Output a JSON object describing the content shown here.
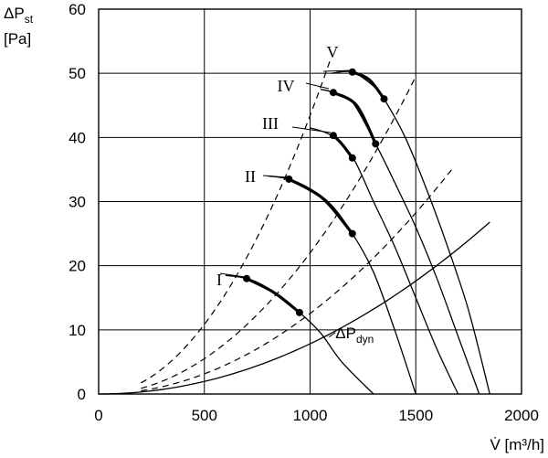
{
  "chart_data": {
    "type": "line",
    "xlabel": "V̇ [m³/h]",
    "ylabel_lines": [
      "ΔPst",
      "[Pa]"
    ],
    "ylabel_main": "ΔP",
    "ylabel_sub": "st",
    "ylabel_unit": "[Pa]",
    "xlim": [
      0,
      2000
    ],
    "ylim": [
      0,
      60
    ],
    "xticks": [
      "0",
      "500",
      "1000",
      "1500",
      "2000"
    ],
    "yticks": [
      "0",
      "10",
      "20",
      "30",
      "40",
      "50",
      "60"
    ],
    "grid": true,
    "fan_curves": [
      {
        "name": "I",
        "x": [
          600,
          700,
          800,
          950,
          1050,
          1150,
          1300
        ],
        "y": [
          18.5,
          18.0,
          16.5,
          12.7,
          9.5,
          5.0,
          0
        ]
      },
      {
        "name": "II",
        "x": [
          800,
          900,
          1000,
          1100,
          1200,
          1300,
          1400,
          1500
        ],
        "y": [
          34.0,
          33.5,
          32.0,
          29.5,
          25.0,
          19.0,
          10.0,
          0
        ]
      },
      {
        "name": "III",
        "x": [
          1000,
          1100,
          1200,
          1300,
          1400,
          1500,
          1600,
          1700
        ],
        "y": [
          41.5,
          40.3,
          37.0,
          30.0,
          23.0,
          15.0,
          7.0,
          0
        ]
      },
      {
        "name": "IV",
        "x": [
          1050,
          1110,
          1200,
          1310,
          1400,
          1500,
          1600,
          1700,
          1800
        ],
        "y": [
          47.5,
          47.0,
          45.5,
          39.0,
          33.0,
          26.0,
          18.0,
          9.0,
          0
        ]
      },
      {
        "name": "V",
        "x": [
          1100,
          1200,
          1300,
          1350,
          1450,
          1550,
          1650,
          1750,
          1850
        ],
        "y": [
          50.0,
          50.2,
          48.0,
          46.0,
          40.0,
          32.0,
          23.0,
          13.0,
          0
        ]
      }
    ],
    "operating_segments": [
      {
        "name": "I",
        "x": [
          700,
          830,
          950
        ],
        "y": [
          18.0,
          15.8,
          12.7
        ]
      },
      {
        "name": "II",
        "x": [
          900,
          1060,
          1200
        ],
        "y": [
          33.5,
          30.5,
          25.0
        ]
      },
      {
        "name": "III",
        "x": [
          1110,
          1150,
          1200
        ],
        "y": [
          40.3,
          39.0,
          36.8
        ]
      },
      {
        "name": "IV",
        "x": [
          1110,
          1220,
          1310
        ],
        "y": [
          47.0,
          45.0,
          39.0
        ]
      },
      {
        "name": "V",
        "x": [
          1200,
          1280,
          1350
        ],
        "y": [
          50.2,
          49.0,
          46.0
        ]
      }
    ],
    "points": [
      {
        "x": 700,
        "y": 18.0
      },
      {
        "x": 950,
        "y": 12.7
      },
      {
        "x": 900,
        "y": 33.5
      },
      {
        "x": 1200,
        "y": 25.0
      },
      {
        "x": 1110,
        "y": 40.3
      },
      {
        "x": 1200,
        "y": 36.8
      },
      {
        "x": 1110,
        "y": 47.0
      },
      {
        "x": 1310,
        "y": 39.0
      },
      {
        "x": 1200,
        "y": 50.2
      },
      {
        "x": 1350,
        "y": 46.0
      }
    ],
    "system_curves": [
      {
        "x": [
          200,
          1100
        ],
        "y": [
          2.5,
          52.5
        ],
        "k": 4.34e-05
      },
      {
        "x": [
          200,
          1500
        ],
        "y": [
          1.2,
          49.5
        ],
        "k": 2.2e-05
      },
      {
        "x": [
          200,
          1670
        ],
        "y": [
          0.7,
          35.0
        ],
        "k": 1.255e-05
      }
    ],
    "dynamic_pressure_curve": {
      "name": "ΔPdyn",
      "label_main": "ΔP",
      "label_sub": "dyn",
      "x": [
        0,
        1850
      ],
      "y": [
        0,
        26.8
      ],
      "k": 7.83e-06
    }
  }
}
